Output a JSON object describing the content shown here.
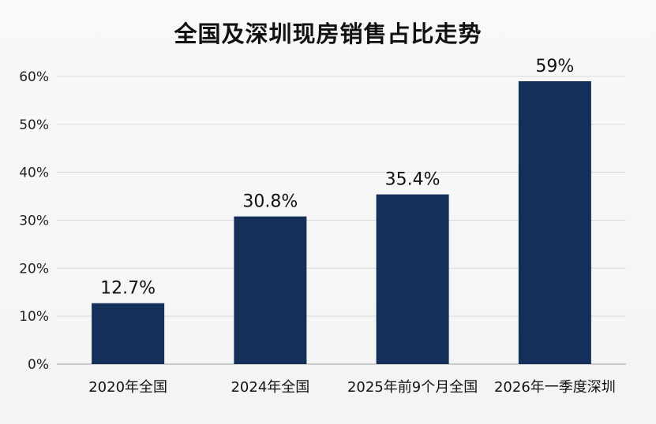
{
  "chart_data": {
    "type": "bar",
    "title": "全国及深圳现房销售占比走势",
    "categories": [
      "2020年全国",
      "2024年全国",
      "2025年前9个月全国",
      "2026年一季度深圳"
    ],
    "values": [
      12.7,
      30.8,
      35.4,
      59
    ],
    "data_labels": [
      "12.7%",
      "30.8%",
      "35.4%",
      "59%"
    ],
    "yticks": [
      "0%",
      "10%",
      "20%",
      "30%",
      "40%",
      "50%",
      "60%"
    ],
    "ylim": [
      0,
      60
    ],
    "grid": true,
    "legend": "none",
    "colors": {
      "bar": "#14305a",
      "grid": "#d9d9d9",
      "axis": "#bdbdbd"
    }
  }
}
